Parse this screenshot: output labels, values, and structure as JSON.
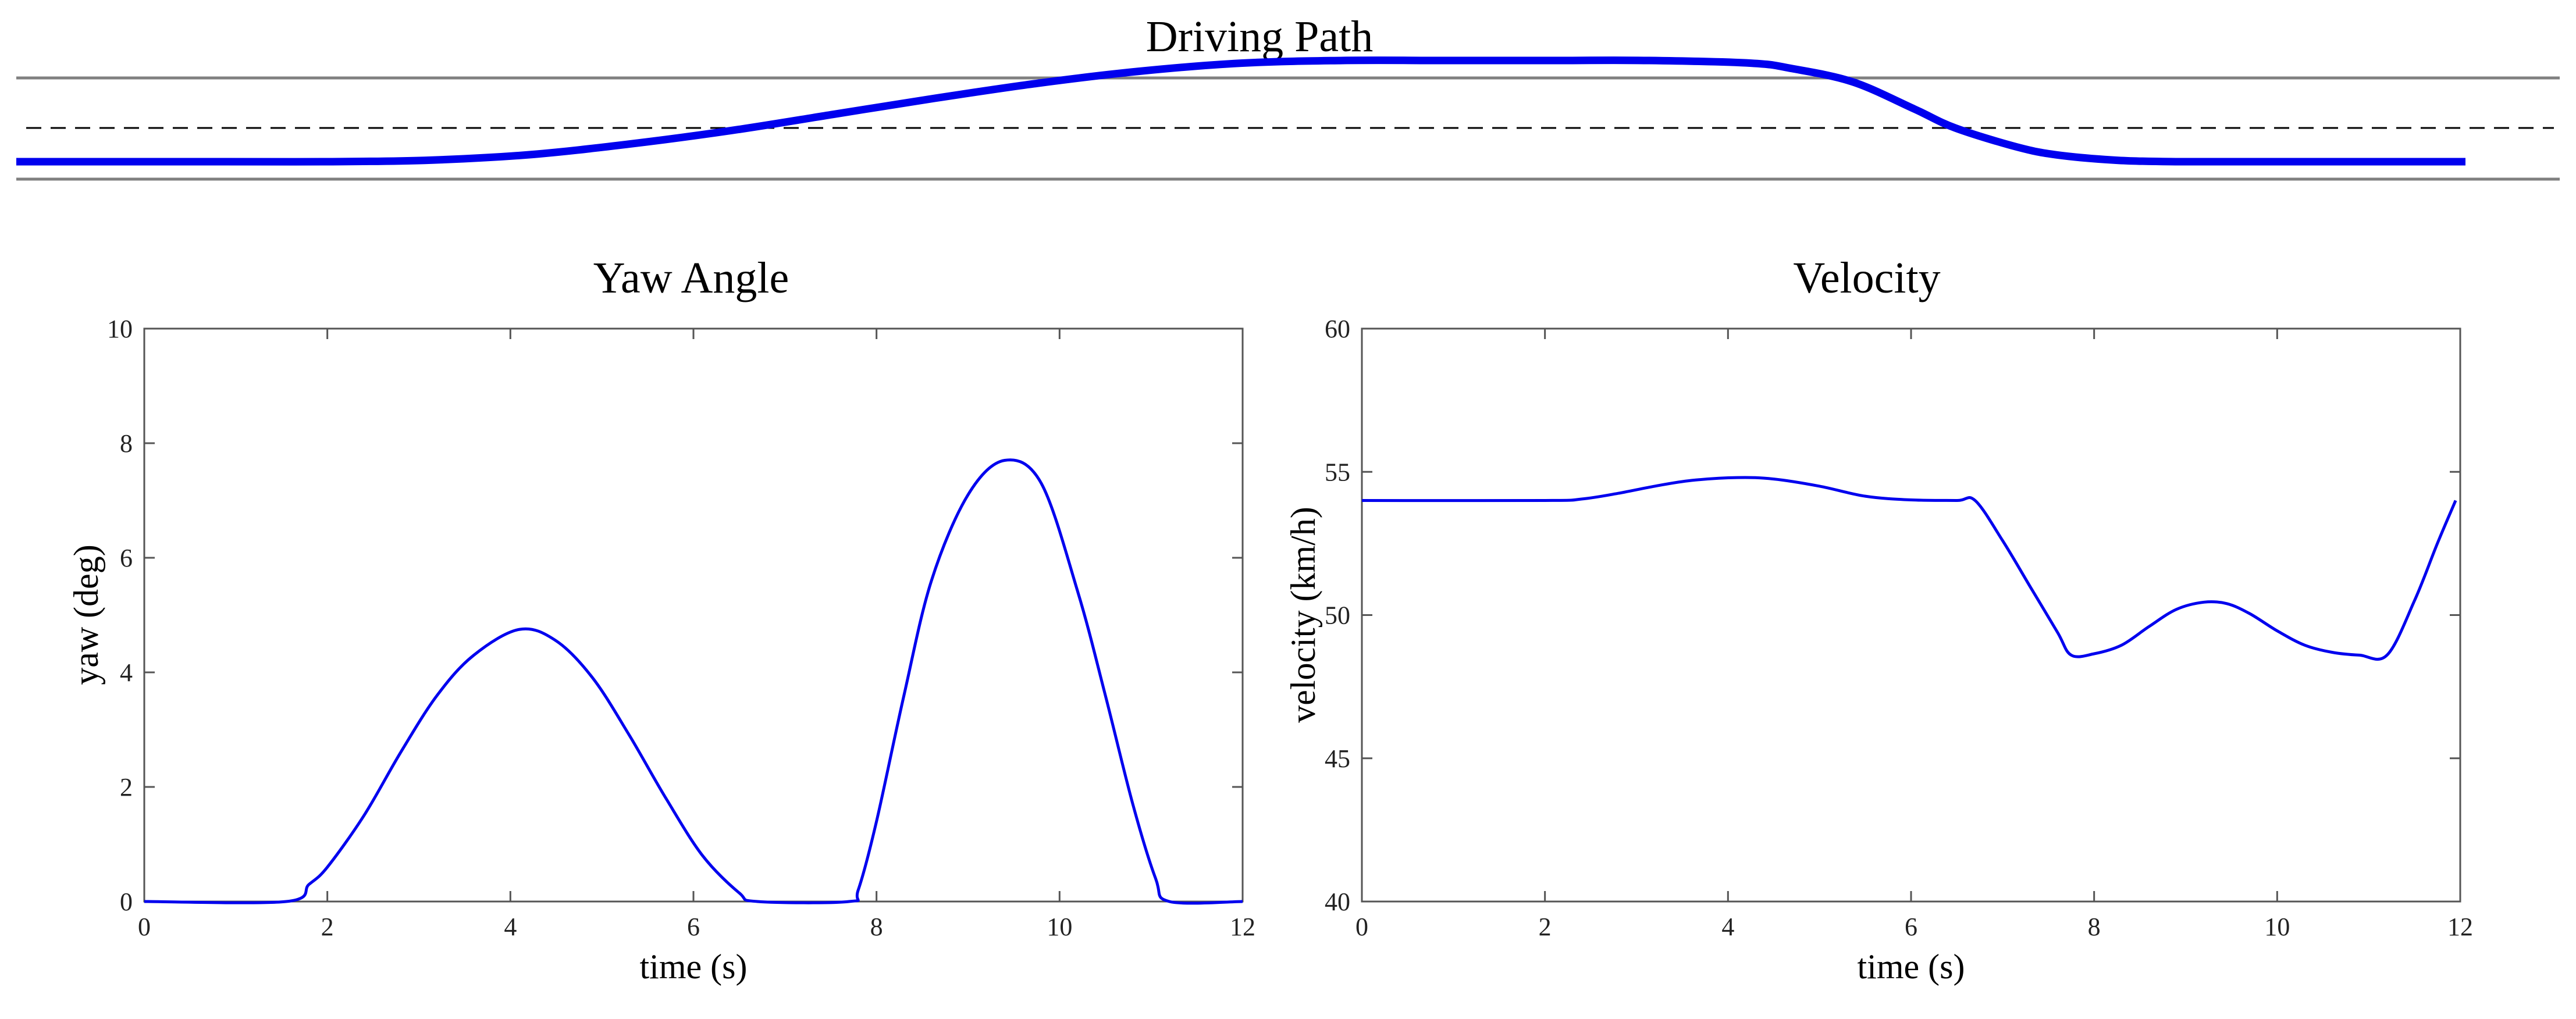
{
  "colors": {
    "line": "#0000ee",
    "road_edge": "#808080",
    "lane_dash": "#000000",
    "axis": "#555555"
  },
  "chart_data": [
    {
      "type": "line",
      "title": "Driving Path",
      "xlim": [
        0,
        12
      ],
      "ylim": [
        -1,
        1
      ],
      "series": [
        {
          "x": [
            0,
            1,
            1.5,
            2,
            2.5,
            3,
            3.5,
            4,
            4.5,
            5,
            5.5,
            6,
            6.5,
            7,
            7.5,
            8,
            8.5,
            8.7,
            9,
            9.3,
            9.5,
            9.8,
            10,
            10.3,
            10.6,
            11,
            11.5,
            12
          ],
          "y": [
            -0.25,
            -0.25,
            -0.25,
            -0.24,
            -0.2,
            -0.12,
            -0.02,
            0.1,
            0.22,
            0.33,
            0.42,
            0.48,
            0.5,
            0.5,
            0.5,
            0.5,
            0.48,
            0.44,
            0.34,
            0.14,
            0.0,
            -0.14,
            -0.2,
            -0.24,
            -0.25,
            -0.25,
            -0.25,
            -0.25
          ]
        }
      ]
    },
    {
      "type": "line",
      "title": "Yaw Angle",
      "xlabel": "time (s)",
      "ylabel": "yaw (deg)",
      "xlim": [
        0,
        12
      ],
      "ylim": [
        0,
        10
      ],
      "xticks": [
        0,
        2,
        4,
        6,
        8,
        10,
        12
      ],
      "yticks": [
        0,
        2,
        4,
        6,
        8,
        10
      ],
      "series": [
        {
          "x": [
            0,
            1.55,
            1.8,
            2,
            2.4,
            2.8,
            3.2,
            3.6,
            4.1,
            4.5,
            4.9,
            5.3,
            5.7,
            6.1,
            6.5,
            6.7,
            7.7,
            7.8,
            8.0,
            8.3,
            8.6,
            9.0,
            9.4,
            9.8,
            10.2,
            10.5,
            10.8,
            11.05,
            11.2,
            12
          ],
          "y": [
            0,
            0,
            0.3,
            0.6,
            1.5,
            2.6,
            3.6,
            4.3,
            4.75,
            4.55,
            3.9,
            2.9,
            1.8,
            0.8,
            0.15,
            0,
            0,
            0.2,
            1.4,
            3.6,
            5.6,
            7.1,
            7.7,
            7.3,
            5.4,
            3.6,
            1.7,
            0.4,
            0,
            0
          ]
        }
      ]
    },
    {
      "type": "line",
      "title": "Velocity",
      "xlabel": "time (s)",
      "ylabel": "velocity (km/h)",
      "xlim": [
        0,
        12
      ],
      "ylim": [
        40,
        60
      ],
      "xticks": [
        0,
        2,
        4,
        6,
        8,
        10,
        12
      ],
      "yticks": [
        40,
        45,
        50,
        55,
        60
      ],
      "series": [
        {
          "x": [
            0,
            2,
            2.4,
            2.8,
            3.2,
            3.6,
            4.1,
            4.5,
            5,
            5.5,
            6,
            6.5,
            6.7,
            7.0,
            7.3,
            7.6,
            7.75,
            8.0,
            8.3,
            8.6,
            8.9,
            9.2,
            9.45,
            9.7,
            10.0,
            10.3,
            10.6,
            10.9,
            11.2,
            11.5,
            11.75,
            11.95
          ],
          "y": [
            54,
            54,
            54.05,
            54.25,
            54.5,
            54.7,
            54.8,
            54.75,
            54.5,
            54.15,
            54.02,
            54,
            54,
            52.6,
            51.0,
            49.4,
            48.6,
            48.65,
            48.95,
            49.6,
            50.2,
            50.45,
            50.4,
            50.05,
            49.45,
            48.95,
            48.7,
            48.6,
            48.6,
            50.5,
            52.5,
            54
          ]
        }
      ]
    }
  ]
}
